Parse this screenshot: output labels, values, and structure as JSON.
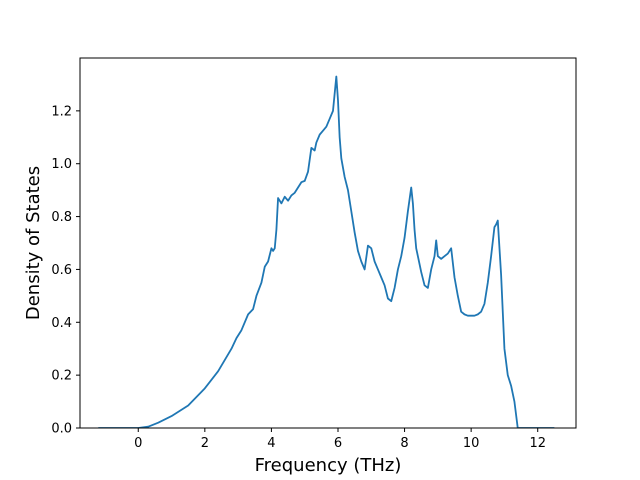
{
  "chart_data": {
    "type": "line",
    "title": "",
    "xlabel": "Frequency (THz)",
    "ylabel": "Density of States",
    "xlim": [
      -1.75,
      13.15
    ],
    "ylim": [
      0.0,
      1.4
    ],
    "xticks": [
      0,
      2,
      4,
      6,
      8,
      10,
      12
    ],
    "yticks": [
      0.0,
      0.2,
      0.4,
      0.6,
      0.8,
      1.0,
      1.2
    ],
    "xtick_labels": [
      "0",
      "2",
      "4",
      "6",
      "8",
      "10",
      "12"
    ],
    "ytick_labels": [
      "0.0",
      "0.2",
      "0.4",
      "0.6",
      "0.8",
      "1.0",
      "1.2"
    ],
    "grid": false,
    "legend": "none",
    "line_color": "#1f77b4",
    "series": [
      {
        "x": [
          -1.2,
          -0.5,
          0.0,
          0.3,
          0.6,
          1.0,
          1.5,
          2.0,
          2.4,
          2.8,
          2.95,
          3.1,
          3.3,
          3.45,
          3.55,
          3.7,
          3.8,
          3.9,
          4.0,
          4.05,
          4.1,
          4.15,
          4.2,
          4.3,
          4.4,
          4.5,
          4.6,
          4.7,
          4.8,
          4.9,
          5.0,
          5.1,
          5.2,
          5.3,
          5.35,
          5.45,
          5.55,
          5.65,
          5.75,
          5.85,
          5.95,
          6.0,
          6.05,
          6.1,
          6.2,
          6.3,
          6.4,
          6.5,
          6.6,
          6.7,
          6.8,
          6.9,
          7.0,
          7.1,
          7.2,
          7.3,
          7.4,
          7.5,
          7.6,
          7.7,
          7.8,
          7.9,
          8.0,
          8.1,
          8.2,
          8.25,
          8.3,
          8.35,
          8.4,
          8.5,
          8.6,
          8.7,
          8.8,
          8.9,
          8.95,
          9.0,
          9.1,
          9.2,
          9.3,
          9.4,
          9.5,
          9.6,
          9.7,
          9.8,
          9.9,
          10.0,
          10.1,
          10.2,
          10.3,
          10.4,
          10.5,
          10.6,
          10.7,
          10.75,
          10.8,
          10.9,
          11.0,
          11.1,
          11.2,
          11.3,
          11.4,
          11.6,
          12.0,
          12.5
        ],
        "y": [
          0.0,
          0.0,
          0.0,
          0.005,
          0.02,
          0.045,
          0.085,
          0.15,
          0.215,
          0.3,
          0.34,
          0.37,
          0.43,
          0.45,
          0.5,
          0.55,
          0.61,
          0.63,
          0.68,
          0.67,
          0.68,
          0.75,
          0.87,
          0.85,
          0.875,
          0.86,
          0.88,
          0.89,
          0.91,
          0.93,
          0.935,
          0.97,
          1.06,
          1.05,
          1.08,
          1.11,
          1.125,
          1.14,
          1.17,
          1.2,
          1.33,
          1.24,
          1.1,
          1.02,
          0.95,
          0.9,
          0.82,
          0.74,
          0.67,
          0.63,
          0.6,
          0.69,
          0.68,
          0.63,
          0.6,
          0.57,
          0.54,
          0.49,
          0.48,
          0.53,
          0.6,
          0.65,
          0.72,
          0.82,
          0.91,
          0.85,
          0.75,
          0.68,
          0.65,
          0.59,
          0.54,
          0.53,
          0.6,
          0.65,
          0.71,
          0.65,
          0.64,
          0.65,
          0.66,
          0.68,
          0.57,
          0.5,
          0.44,
          0.43,
          0.425,
          0.425,
          0.425,
          0.43,
          0.44,
          0.47,
          0.55,
          0.65,
          0.76,
          0.77,
          0.785,
          0.58,
          0.3,
          0.2,
          0.16,
          0.1,
          0.0,
          0.0,
          0.0,
          0.0
        ]
      }
    ]
  }
}
